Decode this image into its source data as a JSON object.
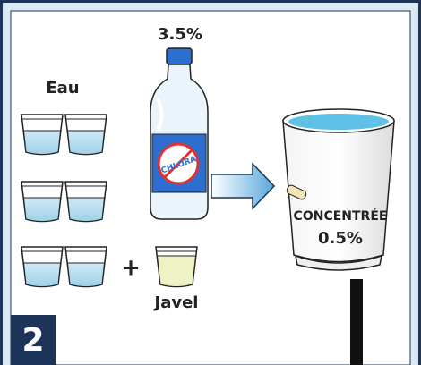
{
  "water_label": "Eau",
  "bottle": {
    "percent": "3.5%",
    "brand": "CHLORA"
  },
  "plus": "+",
  "bleach_label": "Javel",
  "bucket": {
    "label": "CONCENTRÉE",
    "percent": "0.5%"
  },
  "step": "2"
}
